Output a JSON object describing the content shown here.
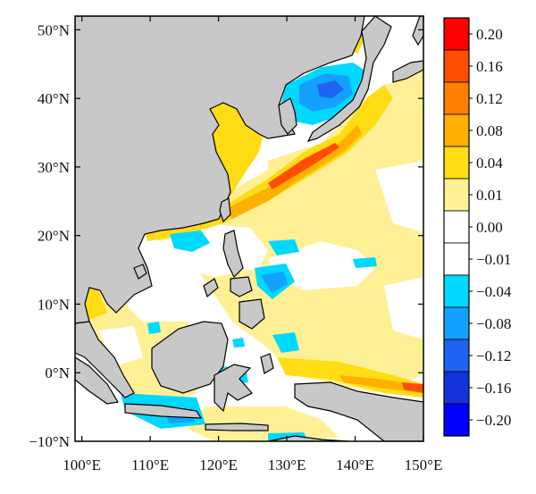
{
  "map": {
    "x_axis": {
      "ticks": [
        "100°E",
        "110°E",
        "120°E",
        "130°E",
        "140°E",
        "150°E"
      ]
    },
    "y_axis": {
      "ticks": [
        "50°N",
        "40°N",
        "30°N",
        "20°N",
        "10°N",
        "0°N",
        "−10°N"
      ]
    },
    "extent": {
      "lon": [
        99,
        150
      ],
      "lat": [
        -10,
        52
      ]
    },
    "land_color": "#c8c8c8",
    "ocean_default": "#ffffff"
  },
  "colorbar": {
    "labels": [
      "0.20",
      "0.16",
      "0.12",
      "0.08",
      "0.04",
      "0.01",
      "0.00",
      "−0.01",
      "−0.04",
      "−0.08",
      "−0.12",
      "−0.16",
      "−0.20"
    ],
    "colors": [
      "#ff0000",
      "#ff4d00",
      "#ff8000",
      "#ffb000",
      "#ffdc14",
      "#fff096",
      "#ffffff",
      "#ffffff",
      "#00d8ff",
      "#14a0ff",
      "#1e64f0",
      "#1432dc",
      "#0000ff"
    ]
  }
}
